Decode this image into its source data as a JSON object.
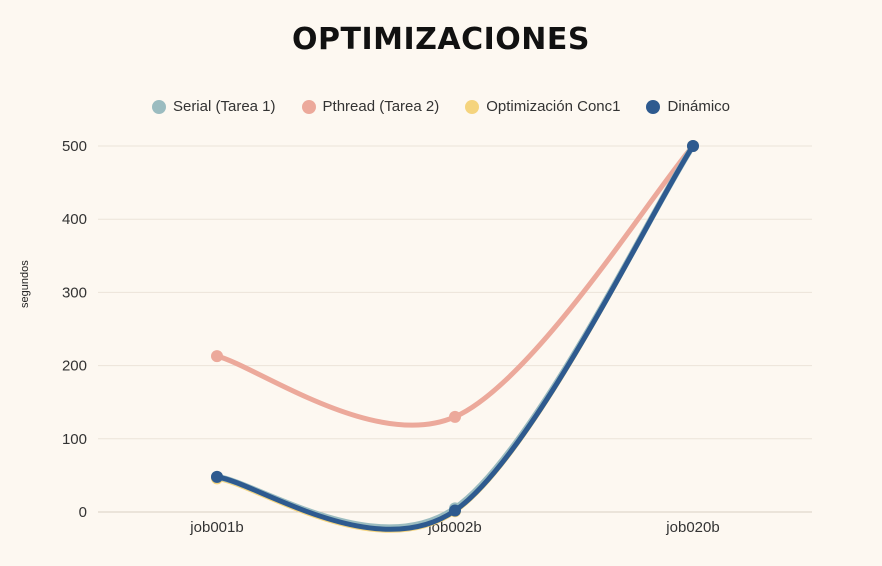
{
  "chart_data": {
    "type": "line",
    "title": "OPTIMIZACIONES",
    "xlabel": "",
    "ylabel": "segundos",
    "categories": [
      "job001b",
      "job002b",
      "job020b"
    ],
    "ylim": [
      0,
      500
    ],
    "yticks": [
      "0",
      "100",
      "200",
      "300",
      "400",
      "500"
    ],
    "ytick_values": [
      0,
      100,
      200,
      300,
      400,
      500
    ],
    "grid": true,
    "legend_position": "top",
    "smooth": true,
    "series": [
      {
        "name": "Serial (Tarea 1)",
        "color": "#9bbcc0",
        "values": [
          48,
          5,
          500
        ]
      },
      {
        "name": "Pthread (Tarea 2)",
        "color": "#eca99b",
        "values": [
          213,
          130,
          500
        ]
      },
      {
        "name": "Optimización Conc1",
        "color": "#f5d47e",
        "values": [
          46,
          1,
          500
        ]
      },
      {
        "name": "Dinámico",
        "color": "#2e5a8f",
        "values": [
          48,
          2,
          500
        ]
      }
    ]
  }
}
